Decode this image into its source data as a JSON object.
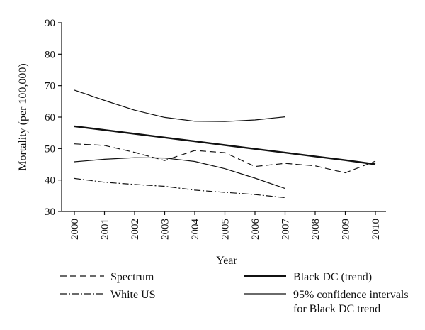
{
  "chart_data": {
    "type": "line",
    "xlabel": "Year",
    "ylabel": "Mortality (per 100,000)",
    "ylim": [
      30,
      90
    ],
    "yticks": [
      "30",
      "40",
      "50",
      "60",
      "70",
      "80",
      "90"
    ],
    "categories": [
      "2000",
      "2001",
      "2002",
      "2003",
      "2004",
      "2005",
      "2006",
      "2007",
      "2008",
      "2009",
      "2010"
    ],
    "grid": false,
    "legend_position": "bottom",
    "series": [
      {
        "name": "Spectrum",
        "style": "dashed",
        "values": [
          51.5,
          51.0,
          48.8,
          46.2,
          49.4,
          48.7,
          44.3,
          45.3,
          44.5,
          42.3,
          46.0
        ]
      },
      {
        "name": "White US",
        "style": "dashdot",
        "values": [
          40.5,
          39.3,
          38.6,
          38.0,
          36.8,
          36.1,
          35.4,
          34.4,
          null,
          null,
          null
        ]
      },
      {
        "name": "Black DC (trend)",
        "style": "solid-thick",
        "values": [
          57.1,
          55.9,
          54.7,
          53.5,
          52.3,
          51.1,
          49.9,
          48.7,
          47.5,
          46.3,
          45.0
        ]
      },
      {
        "name": "95% confidence intervals for Black DC trend",
        "legend_lines": [
          "95% confidence intervals",
          "for Black DC trend"
        ],
        "style": "solid",
        "upper": [
          68.6,
          65.3,
          62.2,
          59.9,
          58.7,
          58.6,
          59.1,
          60.1,
          null,
          null,
          null
        ],
        "lower": [
          45.8,
          46.6,
          47.1,
          47.0,
          45.9,
          43.6,
          40.6,
          37.3,
          null,
          null,
          null
        ]
      }
    ]
  }
}
